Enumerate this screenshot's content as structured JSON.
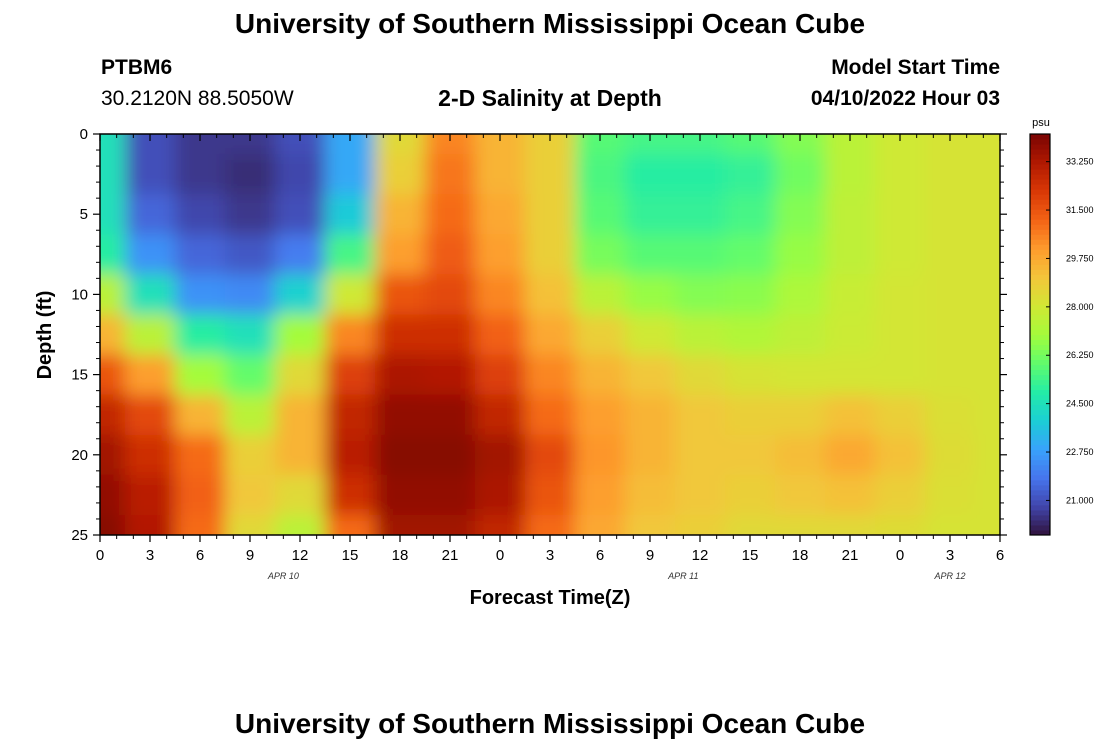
{
  "header": {
    "title": "University of Southern Mississippi Ocean Cube",
    "station": "PTBM6",
    "coords": "30.2120N  88.5050W",
    "subtitle": "2-D Salinity at Depth",
    "model_label": "Model Start Time",
    "model_time": "04/10/2022 Hour 03"
  },
  "footer": {
    "title": "University of Southern Mississippi Ocean Cube"
  },
  "chart_data": {
    "type": "heatmap",
    "title": "2-D Salinity at Depth",
    "xlabel": "Forecast Time(Z)",
    "ylabel": "Depth (ft)",
    "x_ticks": [
      "0",
      "3",
      "6",
      "9",
      "12",
      "15",
      "18",
      "21",
      "0",
      "3",
      "6",
      "9",
      "12",
      "15",
      "18",
      "21",
      "0",
      "3",
      "6"
    ],
    "x_tick_hours": [
      0,
      3,
      6,
      9,
      12,
      15,
      18,
      21,
      24,
      27,
      30,
      33,
      36,
      39,
      42,
      45,
      48,
      51,
      54
    ],
    "x_range_hours": [
      0,
      54
    ],
    "date_labels": [
      {
        "text": "APR 10",
        "hour": 11
      },
      {
        "text": "APR 11",
        "hour": 35
      },
      {
        "text": "APR 12",
        "hour": 51
      }
    ],
    "y_ticks": [
      0,
      5,
      10,
      15,
      20,
      25
    ],
    "ylim": [
      0,
      25
    ],
    "y_inverted": true,
    "colorbar": {
      "unit": "psu",
      "range": [
        19.75,
        34.25
      ],
      "tick_values": [
        21.0,
        22.75,
        24.5,
        26.25,
        28.0,
        29.75,
        31.5,
        33.25
      ],
      "tick_labels": [
        "21.000",
        "22.750",
        "24.500",
        "26.250",
        "28.000",
        "29.750",
        "31.500",
        "33.250"
      ],
      "colors": [
        "#30123b",
        "#4145ab",
        "#4675ed",
        "#39a2fc",
        "#1bcfd4",
        "#24eca6",
        "#61fc6c",
        "#a4fc3b",
        "#d1e834",
        "#f3c63a",
        "#fe9b2d",
        "#f36315",
        "#d93806",
        "#b11901",
        "#7a0403"
      ]
    },
    "grid": false,
    "salinity_field": {
      "depth_rows_ft": [
        0,
        2.5,
        5,
        7.5,
        10,
        12.5,
        15,
        17.5,
        20,
        22.5,
        25
      ],
      "time_cols_hours": [
        0,
        3,
        6,
        9,
        12,
        15,
        18,
        21,
        24,
        27,
        30,
        33,
        36,
        39,
        42,
        45,
        48,
        51,
        54
      ],
      "values_psu": [
        [
          24.5,
          21.0,
          20.5,
          20.5,
          21.0,
          23.0,
          28.5,
          30.5,
          29.5,
          28.8,
          25.8,
          25.5,
          25.5,
          25.8,
          26.5,
          27.5,
          28.0,
          28.2,
          28.2
        ],
        [
          24.5,
          21.0,
          20.5,
          20.3,
          20.8,
          23.0,
          28.8,
          30.8,
          29.5,
          28.8,
          25.6,
          25.0,
          25.0,
          25.2,
          26.2,
          27.5,
          28.0,
          28.2,
          28.2
        ],
        [
          24.5,
          21.5,
          20.8,
          20.5,
          21.0,
          23.8,
          29.5,
          31.0,
          29.8,
          28.8,
          25.8,
          25.2,
          25.2,
          25.5,
          26.5,
          27.6,
          28.0,
          28.2,
          28.2
        ],
        [
          25.0,
          22.5,
          21.5,
          21.2,
          22.0,
          25.5,
          30.0,
          31.3,
          30.0,
          28.8,
          26.3,
          25.8,
          25.8,
          26.0,
          26.8,
          27.6,
          28.0,
          28.2,
          28.2
        ],
        [
          27.5,
          24.5,
          22.5,
          22.3,
          24.0,
          28.0,
          31.5,
          31.8,
          30.5,
          29.2,
          27.5,
          26.8,
          26.5,
          26.6,
          27.2,
          27.8,
          28.1,
          28.2,
          28.2
        ],
        [
          29.5,
          27.5,
          25.0,
          24.5,
          27.0,
          30.5,
          32.5,
          32.5,
          31.2,
          29.8,
          28.8,
          28.0,
          27.5,
          27.3,
          27.6,
          27.9,
          28.1,
          28.2,
          28.2
        ],
        [
          31.5,
          30.0,
          27.0,
          26.0,
          28.5,
          32.0,
          33.3,
          33.2,
          32.0,
          30.5,
          29.5,
          29.0,
          28.5,
          28.2,
          28.1,
          28.1,
          28.1,
          28.2,
          28.2
        ],
        [
          32.8,
          31.8,
          29.5,
          27.5,
          29.5,
          32.8,
          33.8,
          33.8,
          32.8,
          31.0,
          30.0,
          29.5,
          29.0,
          28.8,
          28.8,
          29.2,
          28.8,
          28.3,
          28.2
        ],
        [
          33.5,
          32.5,
          31.0,
          28.8,
          29.5,
          33.0,
          34.0,
          34.0,
          33.5,
          31.8,
          30.2,
          29.5,
          29.0,
          29.0,
          29.3,
          29.8,
          29.2,
          28.4,
          28.2
        ],
        [
          33.8,
          33.0,
          31.2,
          29.0,
          28.5,
          32.5,
          33.8,
          33.8,
          33.3,
          31.5,
          30.0,
          29.3,
          29.0,
          28.8,
          29.0,
          29.2,
          28.8,
          28.3,
          28.2
        ],
        [
          34.0,
          33.2,
          31.0,
          28.5,
          27.5,
          31.0,
          33.5,
          33.5,
          32.8,
          31.0,
          29.8,
          29.0,
          28.8,
          28.5,
          28.5,
          28.5,
          28.4,
          28.2,
          28.2
        ]
      ]
    }
  }
}
